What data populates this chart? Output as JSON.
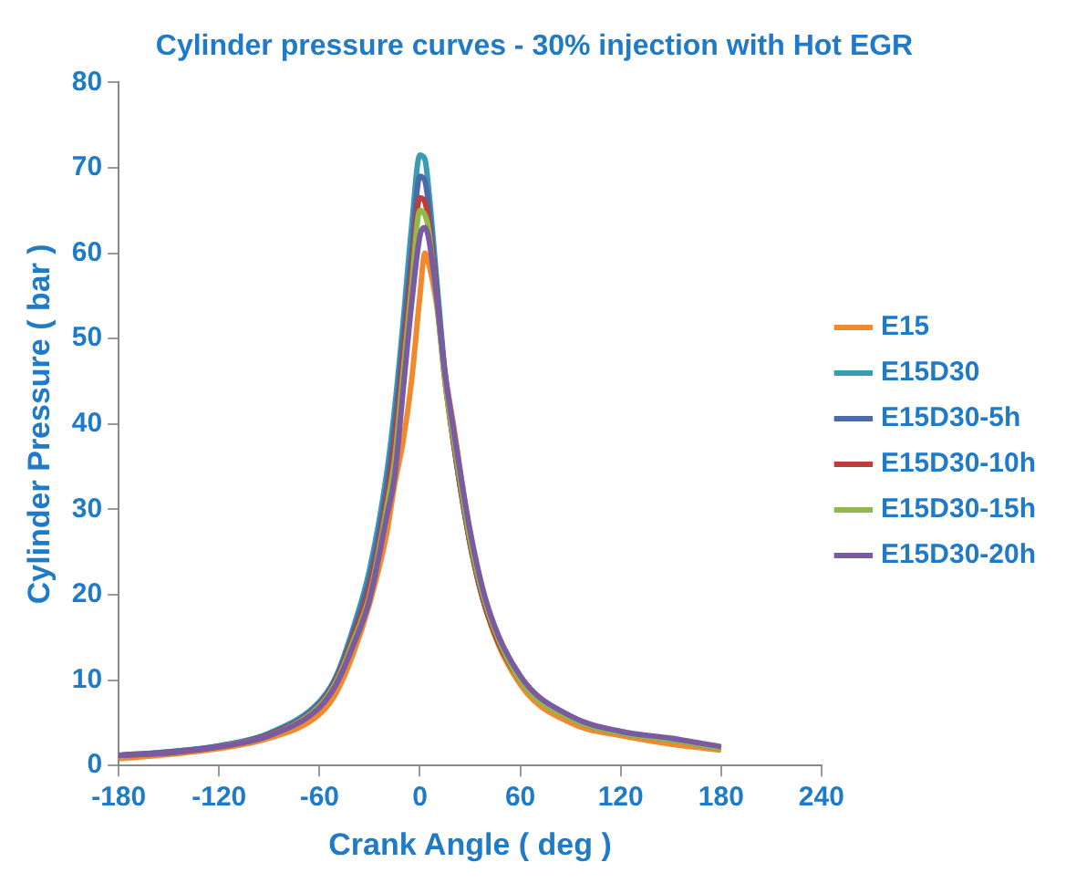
{
  "chart_data": {
    "type": "line",
    "title": "Cylinder pressure curves - 30% injection with Hot EGR",
    "xlabel": "Crank Angle ( deg )",
    "ylabel": "Cylinder Pressure ( bar )",
    "x": [
      -180,
      -150,
      -120,
      -90,
      -60,
      -50,
      -40,
      -30,
      -20,
      -15,
      -10,
      -5,
      0,
      3,
      5,
      10,
      15,
      20,
      30,
      40,
      60,
      90,
      120,
      150,
      180
    ],
    "series": [
      {
        "name": "E15",
        "color": "#f08a2e",
        "values": [
          0.8,
          1.3,
          2,
          3.2,
          6,
          8.5,
          13,
          19,
          27,
          33,
          38,
          45,
          55,
          60,
          59,
          54,
          46,
          40,
          27,
          18,
          9.5,
          5,
          3.5,
          2.5,
          1.8
        ]
      },
      {
        "name": "E15D30",
        "color": "#3a9bb5",
        "values": [
          1.2,
          1.6,
          2.3,
          3.8,
          7.5,
          10.5,
          16,
          23,
          34,
          42,
          52,
          63,
          71.5,
          71,
          68,
          57,
          46,
          38,
          26,
          18,
          10,
          null,
          null,
          null,
          null
        ]
      },
      {
        "name": "E15D30-5h",
        "color": "#4a6aaa",
        "values": [
          1.2,
          1.6,
          2.3,
          3.7,
          7.3,
          10.3,
          15.5,
          22,
          32.5,
          40,
          50,
          60,
          69,
          68.5,
          66,
          56,
          45.5,
          38,
          26,
          18,
          10,
          5.5,
          3.8,
          3,
          2
        ]
      },
      {
        "name": "E15D30-10h",
        "color": "#b8403a",
        "values": [
          1.2,
          1.5,
          2.2,
          3.6,
          7.1,
          10,
          15,
          21,
          31,
          38,
          48,
          58,
          66.5,
          66,
          64,
          55,
          45,
          38,
          26,
          18,
          10,
          5.5,
          null,
          null,
          null
        ]
      },
      {
        "name": "E15D30-15h",
        "color": "#93b84a",
        "values": [
          null,
          null,
          2.2,
          3.5,
          7,
          9.8,
          14.5,
          20,
          30,
          36,
          46,
          56,
          65,
          64.5,
          63,
          54.5,
          45,
          38.5,
          26.5,
          18.5,
          10,
          5.5,
          3.8,
          3,
          2
        ]
      },
      {
        "name": "E15D30-20h",
        "color": "#7a5ba2",
        "values": [
          1.2,
          1.5,
          2.2,
          3.5,
          6.8,
          9.5,
          14,
          19.5,
          29,
          34,
          44,
          54,
          62,
          63,
          62,
          55,
          46,
          39.5,
          27.5,
          19,
          10.5,
          5.8,
          4,
          3.2,
          2.2
        ]
      }
    ],
    "xlim": [
      -180,
      240
    ],
    "xticks": [
      -180,
      -120,
      -60,
      0,
      60,
      120,
      180,
      240
    ],
    "ylim": [
      0,
      80
    ],
    "yticks": [
      0,
      10,
      20,
      30,
      40,
      50,
      60,
      70,
      80
    ],
    "grid": false,
    "legend": "right",
    "marker": "none",
    "line_style": "solid"
  }
}
